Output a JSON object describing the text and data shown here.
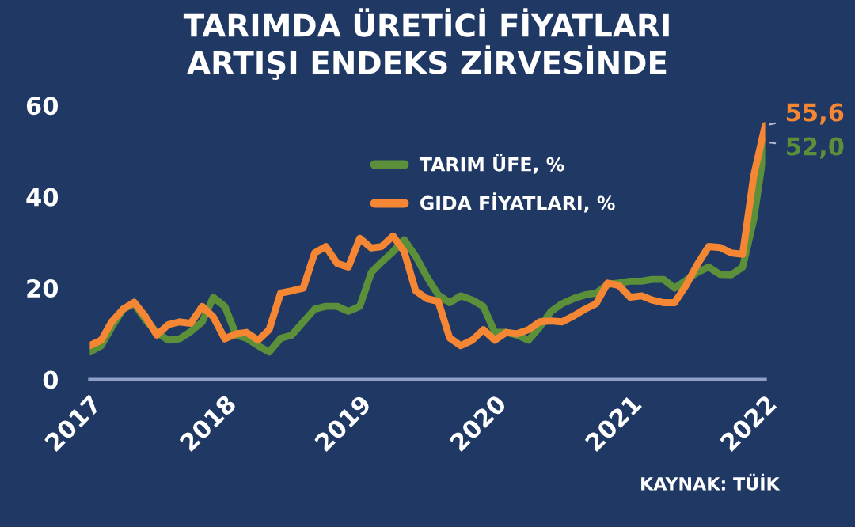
{
  "chart_data": {
    "type": "line",
    "title": "TARIMDA ÜRETİCİ FİYATLARI\nARTIŞI ENDEKS ZİRVESİNDE",
    "x": [
      "2017-01",
      "2017-02",
      "2017-03",
      "2017-04",
      "2017-05",
      "2017-06",
      "2017-07",
      "2017-08",
      "2017-09",
      "2017-10",
      "2017-11",
      "2017-12",
      "2018-01",
      "2018-02",
      "2018-03",
      "2018-04",
      "2018-05",
      "2018-06",
      "2018-07",
      "2018-08",
      "2018-09",
      "2018-10",
      "2018-11",
      "2018-12",
      "2019-01",
      "2019-02",
      "2019-03",
      "2019-04",
      "2019-05",
      "2019-06",
      "2019-07",
      "2019-08",
      "2019-09",
      "2019-10",
      "2019-11",
      "2019-12",
      "2020-01",
      "2020-02",
      "2020-03",
      "2020-04",
      "2020-05",
      "2020-06",
      "2020-07",
      "2020-08",
      "2020-09",
      "2020-10",
      "2020-11",
      "2020-12",
      "2021-01",
      "2021-02",
      "2021-03",
      "2021-04",
      "2021-05",
      "2021-06",
      "2021-07",
      "2021-08",
      "2021-09",
      "2021-10",
      "2021-11",
      "2021-12",
      "2022-01"
    ],
    "series": [
      {
        "name": "TARIM ÜFE, %",
        "color": "#5b8f3a",
        "values": [
          6,
          7.4,
          11.4,
          15.4,
          16.6,
          13,
          10.3,
          8.6,
          8.9,
          10.5,
          12.6,
          18,
          16,
          9.7,
          9,
          7.4,
          6,
          9,
          9.7,
          12.6,
          15.4,
          16,
          16,
          14.9,
          16,
          23.4,
          25.7,
          28,
          30.6,
          27,
          22.5,
          18.5,
          16.8,
          18.3,
          17.4,
          16,
          10.3,
          10.3,
          9.7,
          8.6,
          11.4,
          14.9,
          16.6,
          17.7,
          18.5,
          18.9,
          20.8,
          21.1,
          21.5,
          21.5,
          21.9,
          21.9,
          20,
          21.7,
          23.4,
          24.6,
          23,
          22.9,
          24.6,
          35,
          52.0
        ],
        "value_labels": [
          null,
          null,
          null,
          null,
          null,
          null,
          null,
          null,
          null,
          null,
          null,
          null,
          null,
          null,
          null,
          null,
          null,
          null,
          null,
          null,
          null,
          null,
          null,
          null,
          null,
          null,
          null,
          null,
          null,
          null,
          null,
          null,
          null,
          null,
          null,
          null,
          null,
          null,
          null,
          null,
          null,
          null,
          null,
          null,
          null,
          null,
          null,
          null,
          null,
          null,
          null,
          null,
          null,
          null,
          null,
          null,
          null,
          null,
          null,
          null,
          "52,0"
        ]
      },
      {
        "name": "GIDA FİYATLARI, %",
        "color": "#f58634",
        "values": [
          7.4,
          8.6,
          12.6,
          15.4,
          16.9,
          13.7,
          9.7,
          12,
          12.6,
          12.3,
          16,
          13.7,
          8.9,
          10,
          10.3,
          8.6,
          10.9,
          18.9,
          19.4,
          20,
          27.7,
          29.1,
          25.4,
          24.6,
          30.9,
          28.8,
          29.1,
          31.4,
          28,
          19.4,
          17.7,
          17.1,
          9.1,
          7.4,
          8.6,
          10.9,
          8.6,
          10.3,
          10,
          10.9,
          12.6,
          12.8,
          12.6,
          13.9,
          15.4,
          16.6,
          21.1,
          20.6,
          18,
          18.3,
          17.4,
          16.8,
          16.8,
          20.6,
          25.1,
          29.1,
          28.9,
          27.7,
          27.4,
          44.6,
          55.6
        ],
        "value_labels": [
          null,
          null,
          null,
          null,
          null,
          null,
          null,
          null,
          null,
          null,
          null,
          null,
          null,
          null,
          null,
          null,
          null,
          null,
          null,
          null,
          null,
          null,
          null,
          null,
          null,
          null,
          null,
          null,
          null,
          null,
          null,
          null,
          null,
          null,
          null,
          null,
          null,
          null,
          null,
          null,
          null,
          null,
          null,
          null,
          null,
          null,
          null,
          null,
          null,
          null,
          null,
          null,
          null,
          null,
          null,
          null,
          null,
          null,
          null,
          null,
          "55,6"
        ]
      }
    ],
    "xlim": [
      "2017-01",
      "2022-01"
    ],
    "xticks": [
      "2017",
      "2018",
      "2019",
      "2020",
      "2021",
      "2022"
    ],
    "ylim": [
      0,
      60
    ],
    "yticks": [
      0,
      20,
      40,
      60
    ],
    "grid": false,
    "legend": "top",
    "annotations": [
      "KAYNAK: TÜİK"
    ]
  }
}
